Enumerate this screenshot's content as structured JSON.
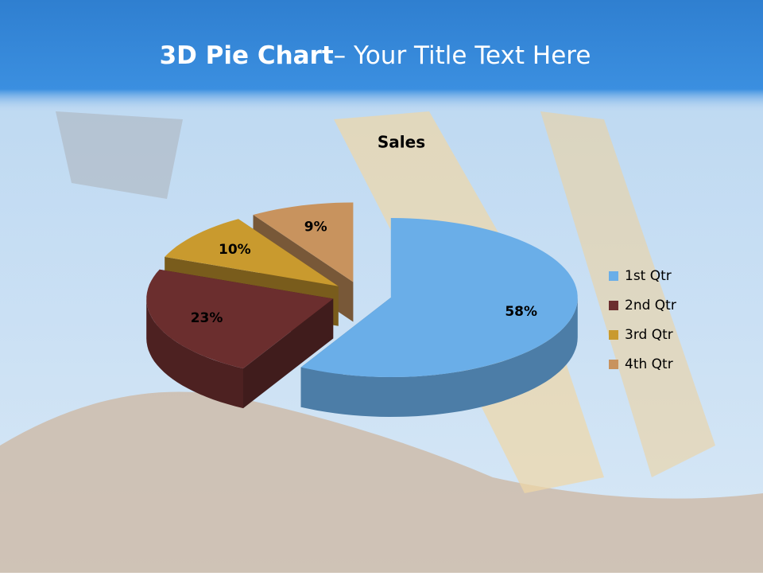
{
  "slide": {
    "title_bold": "3D Pie Chart",
    "title_rest": "– Your Title Text Here"
  },
  "chart_data": {
    "type": "pie",
    "title": "Sales",
    "categories": [
      "1st Qtr",
      "2nd Qtr",
      "3rd Qtr",
      "4th Qtr"
    ],
    "values": [
      58,
      23,
      10,
      9
    ],
    "value_labels": [
      "58%",
      "23%",
      "10%",
      "9%"
    ],
    "colors": [
      "#6aaee8",
      "#6b2e2e",
      "#c99a2e",
      "#c8935e"
    ],
    "legend": "right"
  }
}
